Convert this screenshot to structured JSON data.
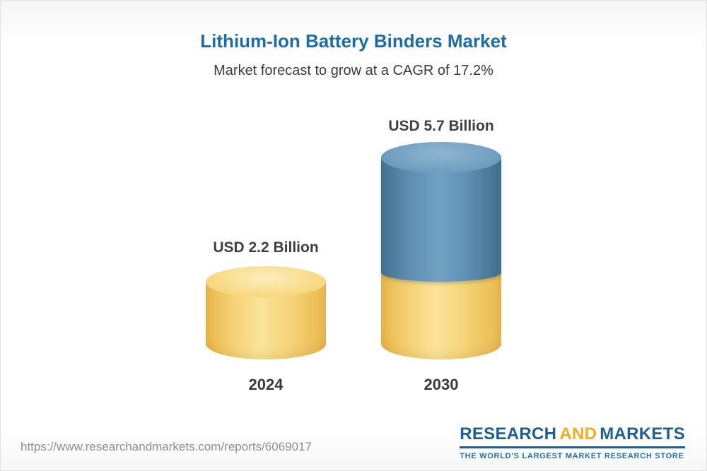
{
  "chart_data": {
    "type": "bar",
    "bar_style": "3d-cylinder",
    "title": "Lithium-Ion Battery Binders Market",
    "subtitle": "Market forecast to grow at a CAGR of 17.2%",
    "cagr_percent": 17.2,
    "categories": [
      "2024",
      "2030"
    ],
    "values": [
      2.2,
      5.7
    ],
    "value_labels": [
      "USD 2.2 Billion",
      "USD 5.7 Billion"
    ],
    "unit": "USD Billion",
    "ylim": [
      0,
      5.7
    ],
    "grid": false,
    "legend_position": "none",
    "colors": {
      "bar_2024": "#f5d174",
      "bar_2030_base": "#f5d174",
      "bar_2030_growth": "#5c8cb0",
      "title": "#1b6ca8",
      "labels": "#3f3f3f"
    }
  },
  "footer": {
    "source_url": "https://www.researchandmarkets.com/reports/6069017",
    "logo": {
      "research": "RESEARCH",
      "and": "AND",
      "markets": "MARKETS",
      "tagline": "THE WORLD'S LARGEST MARKET RESEARCH STORE",
      "blue": "#1c5f90",
      "gold": "#f0af1f"
    }
  }
}
